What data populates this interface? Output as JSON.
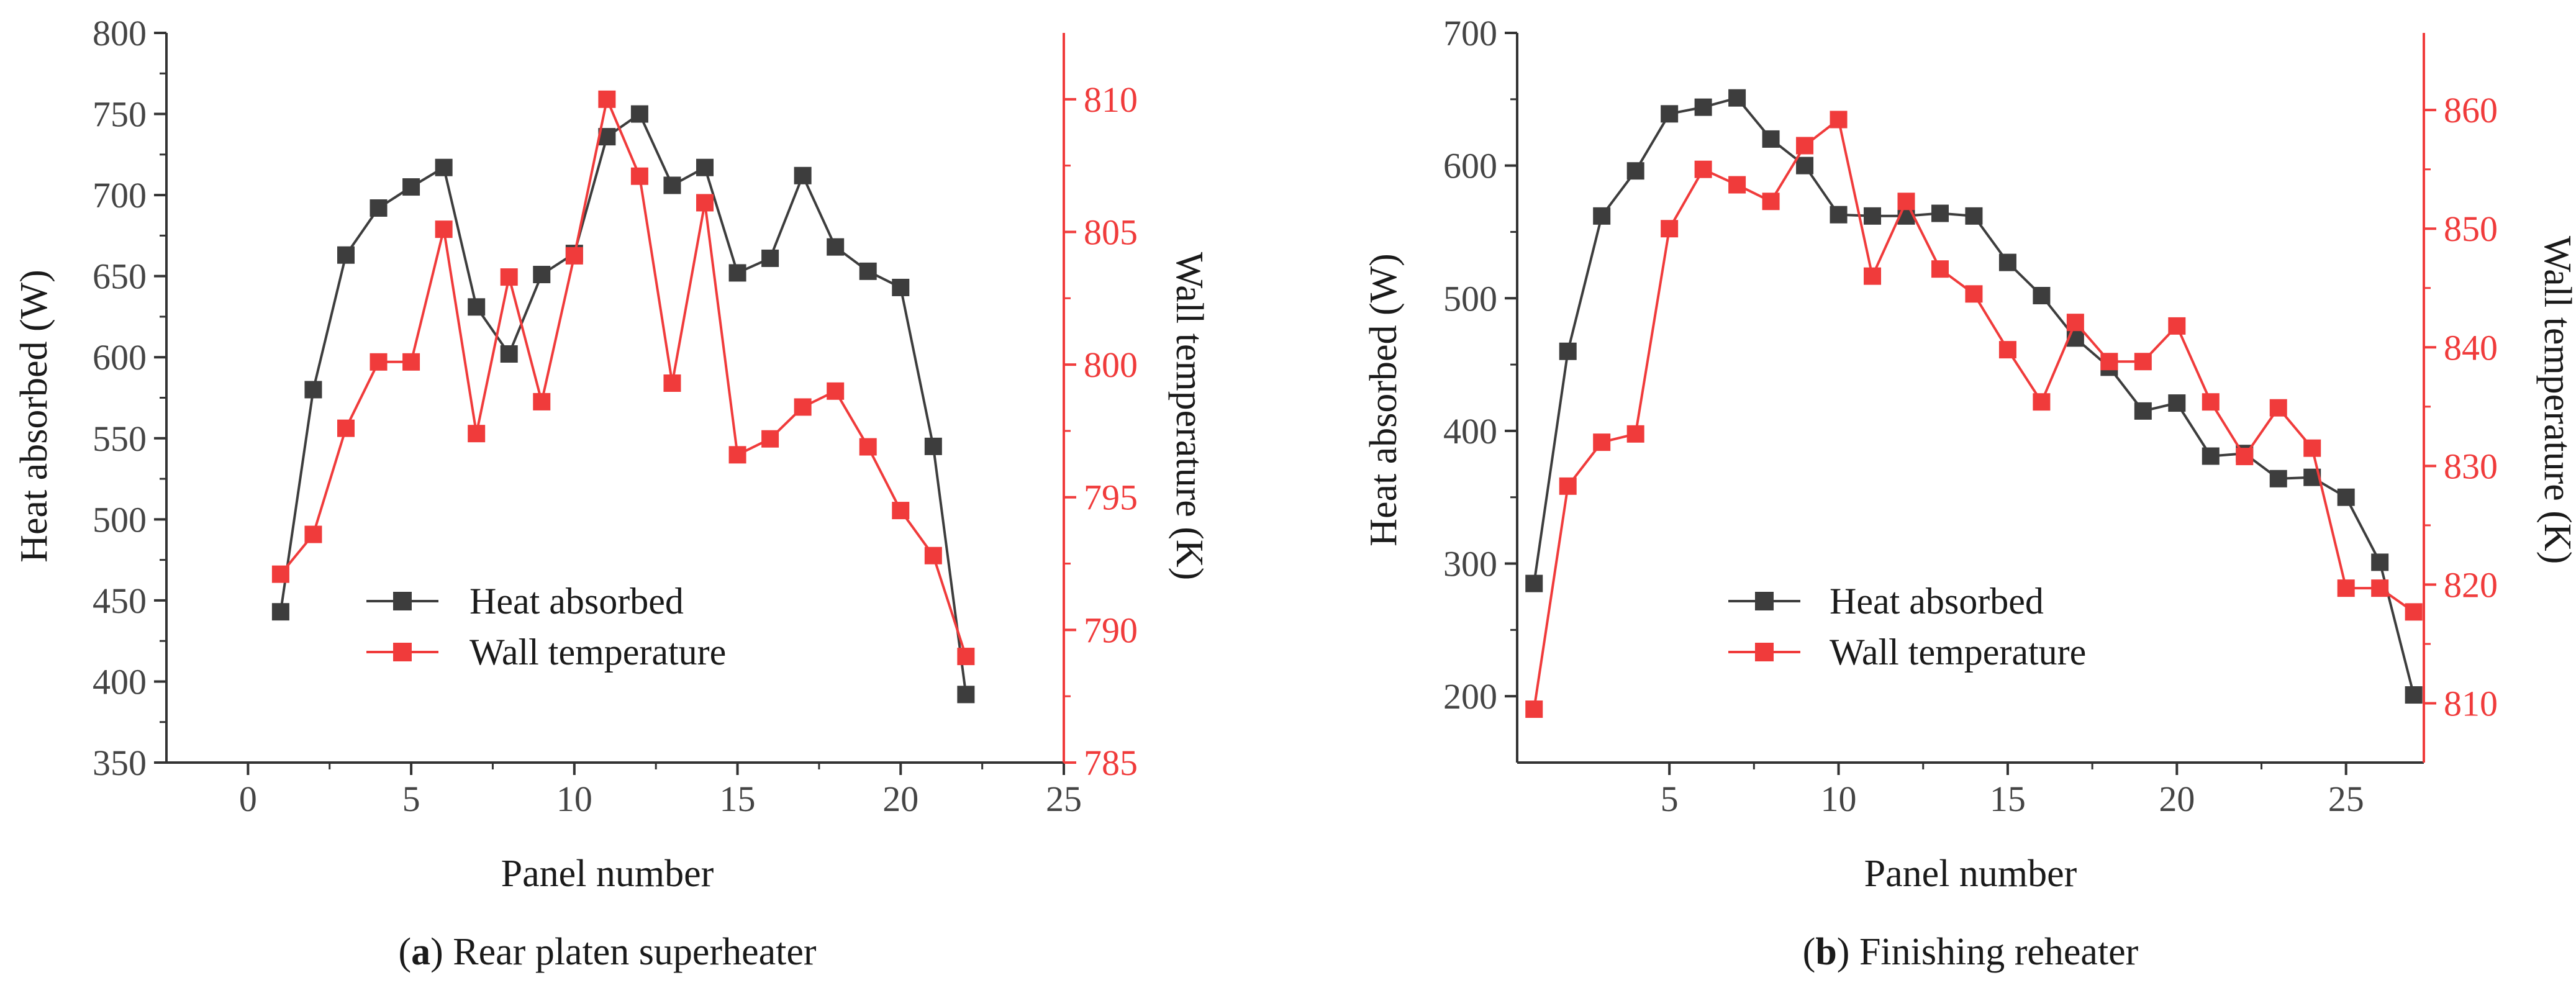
{
  "chart_data": [
    {
      "type": "line",
      "panel_letter": "a",
      "caption": "Rear platen superheater",
      "xlabel": "Panel number",
      "ylabel_left": "Heat absorbed (W)",
      "ylabel_right": "Wall temperature (K)",
      "xlim": [
        -2.5,
        25
      ],
      "xticks": [
        0,
        5,
        10,
        15,
        20,
        25
      ],
      "ylim_left": [
        350,
        800
      ],
      "yticks_left": [
        350,
        400,
        450,
        500,
        550,
        600,
        650,
        700,
        750,
        800
      ],
      "ylim_right": [
        785,
        812.5
      ],
      "yticks_right": [
        785,
        790,
        795,
        800,
        805,
        810
      ],
      "legend": {
        "position": "center-bottom",
        "entries": [
          "Heat absorbed",
          "Wall temperature"
        ]
      },
      "series": [
        {
          "name": "Heat absorbed",
          "axis": "left",
          "color": "#3d3d3d",
          "x": [
            1,
            2,
            3,
            4,
            5,
            6,
            7,
            8,
            9,
            10,
            11,
            12,
            13,
            14,
            15,
            16,
            17,
            18,
            19,
            20,
            21,
            22
          ],
          "values": [
            443,
            580,
            663,
            692,
            705,
            717,
            631,
            602,
            651,
            664,
            736,
            750,
            706,
            717,
            652,
            661,
            712,
            668,
            653,
            643,
            545,
            392
          ]
        },
        {
          "name": "Wall temperature",
          "axis": "right",
          "color": "#f03b3b",
          "x": [
            1,
            2,
            3,
            4,
            5,
            6,
            7,
            8,
            9,
            10,
            11,
            12,
            13,
            14,
            15,
            16,
            17,
            18,
            19,
            20,
            21,
            22
          ],
          "values": [
            792.1,
            793.6,
            797.6,
            800.1,
            800.1,
            805.1,
            797.4,
            803.3,
            798.6,
            804.1,
            810.0,
            807.1,
            799.3,
            806.1,
            796.6,
            797.2,
            798.4,
            799.0,
            796.9,
            794.5,
            792.8,
            789.0
          ]
        }
      ]
    },
    {
      "type": "line",
      "panel_letter": "b",
      "caption": "Finishing reheater",
      "xlabel": "Panel number",
      "ylabel_left": "Heat absorbed (W)",
      "ylabel_right": "Wall temperature (K)",
      "xlim": [
        0.5,
        27.3
      ],
      "xticks": [
        5,
        10,
        15,
        20,
        25
      ],
      "ylim_left": [
        150,
        700
      ],
      "yticks_left": [
        200,
        300,
        400,
        500,
        600,
        700
      ],
      "ylim_right": [
        805,
        866.5
      ],
      "yticks_right": [
        810,
        820,
        830,
        840,
        850,
        860
      ],
      "legend": {
        "position": "center-bottom",
        "entries": [
          "Heat absorbed",
          "Wall temperature"
        ]
      },
      "series": [
        {
          "name": "Heat absorbed",
          "axis": "left",
          "color": "#3d3d3d",
          "x": [
            1,
            2,
            3,
            4,
            5,
            6,
            7,
            8,
            9,
            10,
            11,
            12,
            13,
            14,
            15,
            16,
            17,
            18,
            19,
            20,
            21,
            22,
            23,
            24,
            25,
            26,
            27
          ],
          "values": [
            285,
            460,
            562,
            596,
            639,
            644,
            651,
            620,
            600,
            563,
            562,
            562,
            564,
            562,
            527,
            502,
            470,
            448,
            415,
            421,
            381,
            383,
            364,
            365,
            350,
            301,
            201
          ]
        },
        {
          "name": "Wall temperature",
          "axis": "right",
          "color": "#f03b3b",
          "x": [
            1,
            2,
            3,
            4,
            5,
            6,
            7,
            8,
            9,
            10,
            11,
            12,
            13,
            14,
            15,
            16,
            17,
            18,
            19,
            20,
            21,
            22,
            23,
            24,
            25,
            26,
            27
          ],
          "values": [
            809.5,
            828.3,
            832.0,
            832.7,
            850.0,
            855.0,
            853.7,
            852.3,
            857.0,
            859.2,
            846.0,
            852.3,
            846.6,
            844.5,
            839.8,
            835.4,
            842.1,
            838.8,
            838.8,
            841.8,
            835.4,
            830.8,
            834.9,
            831.5,
            819.7,
            819.7,
            817.7
          ]
        }
      ]
    }
  ]
}
